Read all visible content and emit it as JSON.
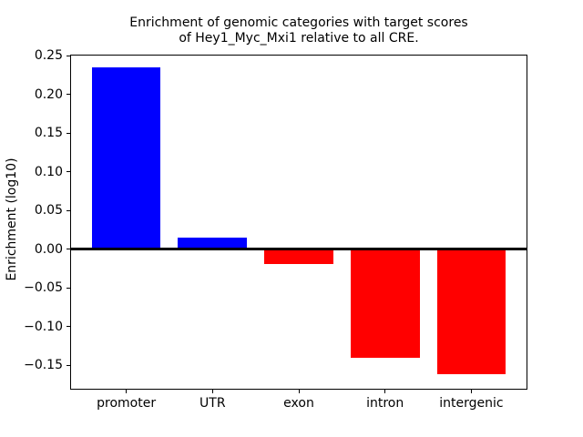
{
  "chart_data": {
    "type": "bar",
    "title": "Enrichment of genomic categories with target scores\nof Hey1_Myc_Mxi1 relative to all CRE.",
    "xlabel": "",
    "ylabel": "Enrichment (log10)",
    "categories": [
      "promoter",
      "UTR",
      "exon",
      "intron",
      "intergenic"
    ],
    "values": [
      0.235,
      0.015,
      -0.019,
      -0.14,
      -0.162
    ],
    "bar_colors": [
      "#0000ff",
      "#0000ff",
      "#ff0000",
      "#ff0000",
      "#ff0000"
    ],
    "positive_color": "#0000ff",
    "negative_color": "#ff0000",
    "ylim": [
      -0.18,
      0.25
    ],
    "yticks": [
      {
        "value": 0.25,
        "label": "0.25"
      },
      {
        "value": 0.2,
        "label": "0.20"
      },
      {
        "value": 0.15,
        "label": "0.15"
      },
      {
        "value": 0.1,
        "label": "0.10"
      },
      {
        "value": 0.05,
        "label": "0.05"
      },
      {
        "value": 0.0,
        "label": "0.00"
      },
      {
        "value": -0.05,
        "label": "−0.05"
      },
      {
        "value": -0.1,
        "label": "−0.10"
      },
      {
        "value": -0.15,
        "label": "−0.15"
      }
    ],
    "grid": false,
    "legend_position": "none",
    "bar_width_fraction": 0.8,
    "zero_line": {
      "color": "#000000",
      "thickness_px": 3
    },
    "axis_color": "#000000",
    "background_color": "#ffffff"
  }
}
